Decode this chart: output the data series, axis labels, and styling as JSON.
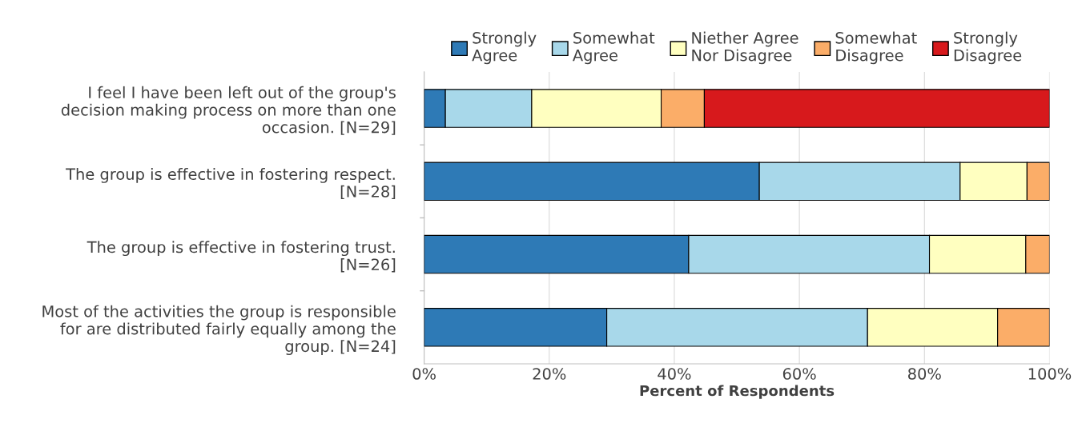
{
  "chart_data": {
    "type": "bar",
    "orientation": "horizontal",
    "stacked": true,
    "xlabel": "Percent of Respondents",
    "categories": [
      "I feel I have been left out of the group's\ndecision making process on more than one\noccasion. [N=29]",
      "The group is effective in fostering respect.\n[N=28]",
      "The group is effective in fostering trust.\n[N=26]",
      "Most of the activities the group is responsible\nfor are distributed fairly equally among the\ngroup. [N=24]"
    ],
    "series": [
      {
        "name": "Strongly\nAgree",
        "color": "#2e7ab6",
        "values": [
          3.4,
          53.6,
          42.3,
          29.2
        ]
      },
      {
        "name": "Somewhat\nAgree",
        "color": "#a8d8ea",
        "values": [
          13.8,
          32.1,
          38.5,
          41.7
        ]
      },
      {
        "name": "Niether Agree\nNor Disagree",
        "color": "#ffffc0",
        "values": [
          20.7,
          10.7,
          15.4,
          20.8
        ]
      },
      {
        "name": "Somewhat\nDisagree",
        "color": "#fbad68",
        "values": [
          6.9,
          3.6,
          3.8,
          8.3
        ]
      },
      {
        "name": "Strongly\nDisagree",
        "color": "#d7191c",
        "values": [
          55.2,
          null,
          null,
          null
        ]
      }
    ],
    "xlim": [
      0,
      100
    ],
    "xticks": [
      {
        "value": 0,
        "label": "0%"
      },
      {
        "value": 20,
        "label": "20%"
      },
      {
        "value": 40,
        "label": "40%"
      },
      {
        "value": 60,
        "label": "60%"
      },
      {
        "value": 80,
        "label": "80%"
      },
      {
        "value": 100,
        "label": "100%"
      }
    ],
    "grid": "x",
    "legend": "top"
  }
}
